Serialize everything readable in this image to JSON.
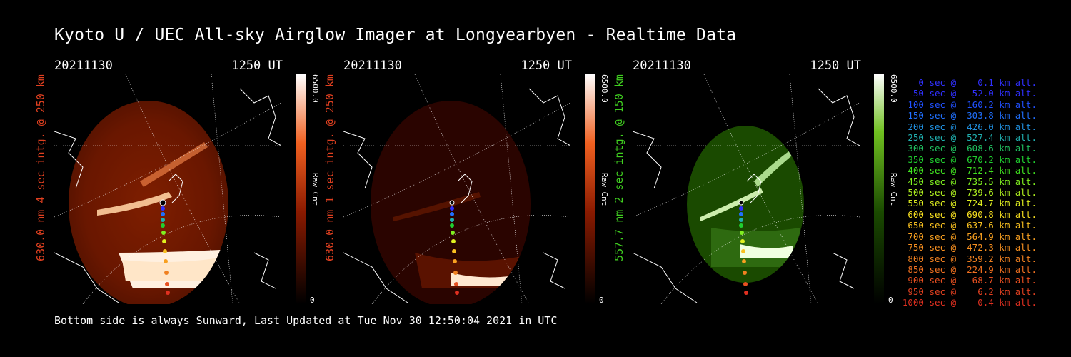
{
  "title": "Kyoto U / UEC All-sky Airglow Imager at Longyearbyen - Realtime Data",
  "footer": "Bottom side is always Sunward, Last Updated at Tue Nov 30 12:50:04 2021 in UTC",
  "panels": [
    {
      "date": "20211130",
      "time": "1250 UT",
      "ylabel": "630.0 nm 4 sec intg. @ 250 km",
      "cb_max": "6500.0",
      "cb_label": "Raw Cnt",
      "cb_min": "0",
      "label_color": "#e04020",
      "scheme": "red"
    },
    {
      "date": "20211130",
      "time": "1250 UT",
      "ylabel": "630.0 nm 1 sec intg. @ 250 km",
      "cb_max": "6500.0",
      "cb_label": "Raw Cnt",
      "cb_min": "0",
      "label_color": "#e04020",
      "scheme": "red"
    },
    {
      "date": "20211130",
      "time": "1250 UT",
      "ylabel": "557.7 nm 2 sec intg. @ 150 km",
      "cb_max": "6500.0",
      "cb_label": "Raw Cnt",
      "cb_min": "0",
      "label_color": "#40d020",
      "scheme": "green"
    }
  ],
  "legend": [
    {
      "text": "   0 sec @    0.1 km alt.",
      "color": "#3030ff"
    },
    {
      "text": "  50 sec @   52.0 km alt.",
      "color": "#3030ff"
    },
    {
      "text": " 100 sec @  160.2 km alt.",
      "color": "#2050ff"
    },
    {
      "text": " 150 sec @  303.8 km alt.",
      "color": "#2070ff"
    },
    {
      "text": " 200 sec @  426.0 km alt.",
      "color": "#2090e0"
    },
    {
      "text": " 250 sec @  527.4 km alt.",
      "color": "#20b0b0"
    },
    {
      "text": " 300 sec @  608.6 km alt.",
      "color": "#20c060"
    },
    {
      "text": " 350 sec @  670.2 km alt.",
      "color": "#20d030"
    },
    {
      "text": " 400 sec @  712.4 km alt.",
      "color": "#40e020"
    },
    {
      "text": " 450 sec @  735.5 km alt.",
      "color": "#80f020"
    },
    {
      "text": " 500 sec @  739.6 km alt.",
      "color": "#b0f020"
    },
    {
      "text": " 550 sec @  724.7 km alt.",
      "color": "#e0f020"
    },
    {
      "text": " 600 sec @  690.8 km alt.",
      "color": "#f8e020"
    },
    {
      "text": " 650 sec @  637.6 km alt.",
      "color": "#f8c020"
    },
    {
      "text": " 700 sec @  564.9 km alt.",
      "color": "#f8a020"
    },
    {
      "text": " 750 sec @  472.3 km alt.",
      "color": "#f89020"
    },
    {
      "text": " 800 sec @  359.2 km alt.",
      "color": "#f08020"
    },
    {
      "text": " 850 sec @  224.9 km alt.",
      "color": "#f07020"
    },
    {
      "text": " 900 sec @   68.7 km alt.",
      "color": "#e85020"
    },
    {
      "text": " 950 sec @    6.2 km alt.",
      "color": "#e04020"
    },
    {
      "text": "1000 sec @    0.4 km alt.",
      "color": "#e03020"
    }
  ]
}
